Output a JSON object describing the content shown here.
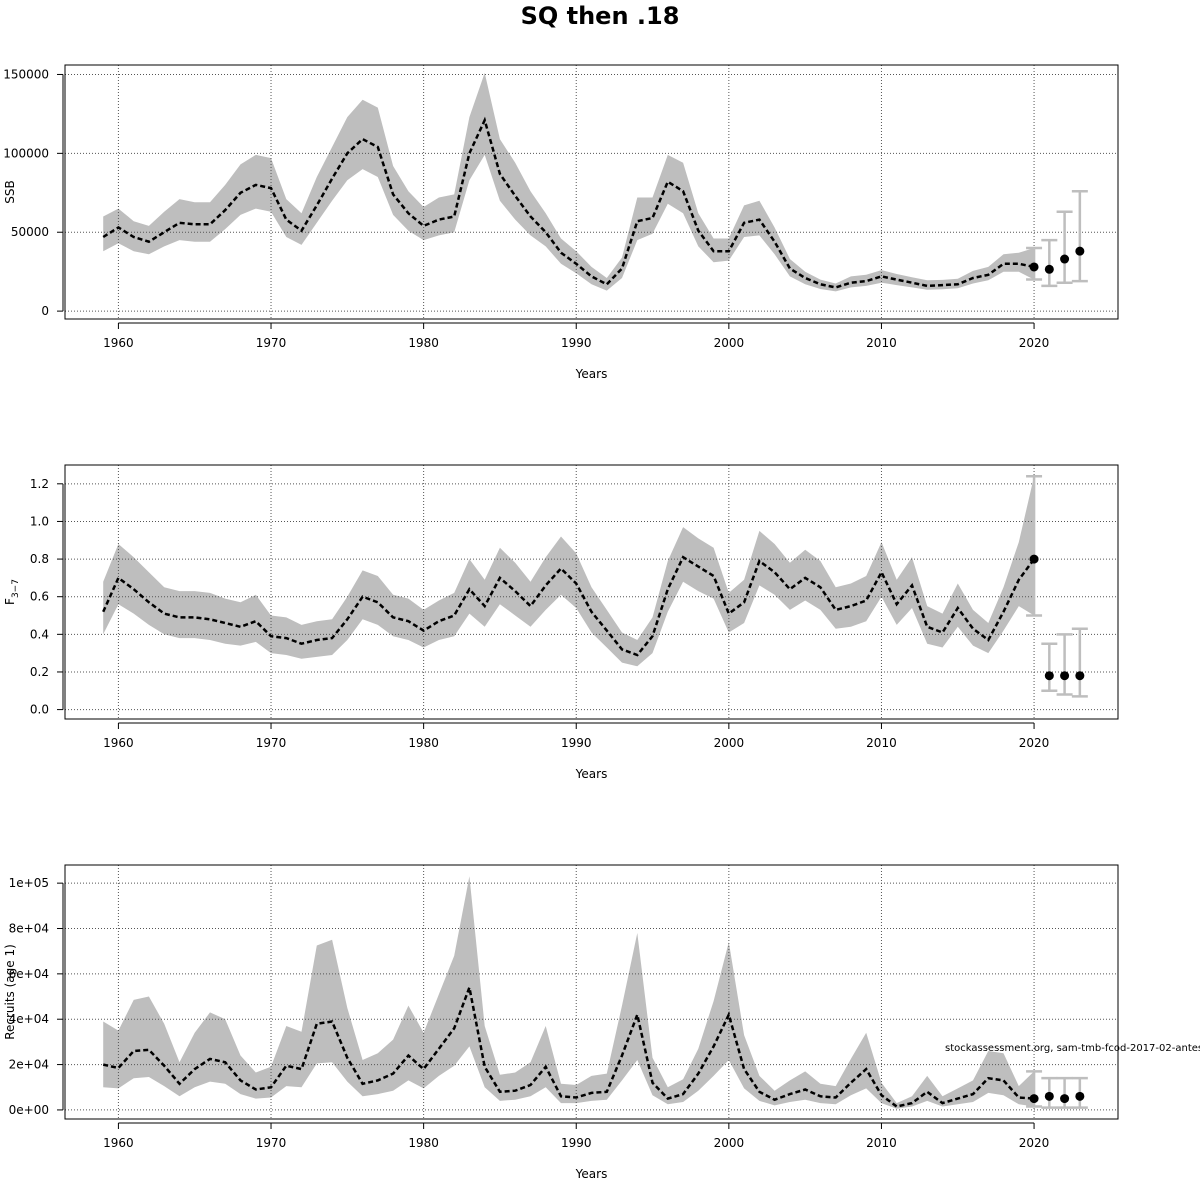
{
  "title": "SQ then .18",
  "watermark": "stockassessment.org, sam-tmb-fcod-2017-02-antes",
  "colors": {
    "band": "#bebebe",
    "line": "#000000",
    "forecast_bar": "#bebebe",
    "grid": "#555555"
  },
  "chart_data": [
    {
      "type": "line",
      "id": "ssb",
      "title": "",
      "xlabel": "Years",
      "ylabel": "SSB",
      "xlim": [
        1956.5,
        2025.5
      ],
      "ylim": [
        -5000,
        156000
      ],
      "xticks": [
        1960,
        1970,
        1980,
        1990,
        2000,
        2010,
        2020
      ],
      "yticks": [
        0,
        50000,
        100000,
        150000
      ],
      "ytick_labels": [
        "0",
        "50000",
        "100000",
        "150000"
      ],
      "years": [
        1959,
        1960,
        1961,
        1962,
        1963,
        1964,
        1965,
        1966,
        1967,
        1968,
        1969,
        1970,
        1971,
        1972,
        1973,
        1974,
        1975,
        1976,
        1977,
        1978,
        1979,
        1980,
        1981,
        1982,
        1983,
        1984,
        1985,
        1986,
        1987,
        1988,
        1989,
        1990,
        1991,
        1992,
        1993,
        1994,
        1995,
        1996,
        1997,
        1998,
        1999,
        2000,
        2001,
        2002,
        2003,
        2004,
        2005,
        2006,
        2007,
        2008,
        2009,
        2010,
        2011,
        2012,
        2013,
        2014,
        2015,
        2016,
        2017,
        2018,
        2019,
        2020
      ],
      "estimate": [
        47000,
        53000,
        47000,
        44000,
        50000,
        56000,
        55000,
        55000,
        64000,
        75000,
        80000,
        78000,
        58000,
        51000,
        67000,
        84000,
        100000,
        109000,
        104000,
        74000,
        62000,
        54000,
        58000,
        60000,
        100000,
        121000,
        87000,
        73000,
        60000,
        50000,
        37000,
        30000,
        22000,
        17000,
        27000,
        57000,
        59000,
        82000,
        76000,
        51000,
        38000,
        38000,
        56000,
        58000,
        44000,
        27000,
        21000,
        17000,
        15000,
        18000,
        19000,
        22000,
        20000,
        18000,
        16000,
        16500,
        17000,
        21000,
        23000,
        30000,
        30000,
        28000
      ],
      "lower": [
        38000,
        43000,
        38000,
        36000,
        41000,
        45000,
        44000,
        44000,
        52000,
        61000,
        65000,
        63000,
        47000,
        42000,
        56000,
        70000,
        83000,
        90000,
        85000,
        61000,
        51000,
        45000,
        48000,
        50000,
        83000,
        99000,
        70000,
        58000,
        48000,
        41000,
        30000,
        24000,
        17000,
        13000,
        21000,
        45000,
        49000,
        68000,
        62000,
        41000,
        31000,
        32000,
        47000,
        48000,
        36000,
        22000,
        17000,
        14000,
        12500,
        15000,
        16000,
        18000,
        16500,
        15000,
        13500,
        13800,
        14500,
        17500,
        19500,
        25000,
        25000,
        20000
      ],
      "upper": [
        60000,
        65000,
        57000,
        54000,
        63000,
        71000,
        69000,
        69000,
        80000,
        93000,
        99000,
        97000,
        71000,
        62000,
        85000,
        104000,
        123000,
        134000,
        129000,
        92000,
        76000,
        66000,
        72000,
        74000,
        123000,
        151000,
        109000,
        94000,
        76000,
        62000,
        46000,
        38000,
        28000,
        21000,
        34000,
        72000,
        72000,
        99000,
        94000,
        62000,
        46000,
        46000,
        67000,
        70000,
        53000,
        33000,
        25000,
        20000,
        17500,
        22000,
        23000,
        26000,
        23500,
        21500,
        19500,
        19800,
        20500,
        25500,
        28000,
        36000,
        37000,
        40000
      ],
      "forecast": {
        "years": [
          2020,
          2021,
          2022,
          2023
        ],
        "estimate": [
          28000,
          26500,
          33000,
          38000
        ],
        "lower": [
          20000,
          16000,
          18000,
          19000
        ],
        "upper": [
          40000,
          45000,
          63000,
          76000
        ]
      }
    },
    {
      "type": "line",
      "id": "fbar",
      "title": "",
      "xlabel": "Years",
      "ylabel": "F",
      "ylabel_subscript": "3−7",
      "xlim": [
        1956.5,
        2025.5
      ],
      "ylim": [
        -0.05,
        1.3
      ],
      "xticks": [
        1960,
        1970,
        1980,
        1990,
        2000,
        2010,
        2020
      ],
      "yticks": [
        0,
        0.2,
        0.4,
        0.6,
        0.8,
        1.0,
        1.2
      ],
      "ytick_labels": [
        "0.0",
        "0.2",
        "0.4",
        "0.6",
        "0.8",
        "1.0",
        "1.2"
      ],
      "years": [
        1959,
        1960,
        1961,
        1962,
        1963,
        1964,
        1965,
        1966,
        1967,
        1968,
        1969,
        1970,
        1971,
        1972,
        1973,
        1974,
        1975,
        1976,
        1977,
        1978,
        1979,
        1980,
        1981,
        1982,
        1983,
        1984,
        1985,
        1986,
        1987,
        1988,
        1989,
        1990,
        1991,
        1992,
        1993,
        1994,
        1995,
        1996,
        1997,
        1998,
        1999,
        2000,
        2001,
        2002,
        2003,
        2004,
        2005,
        2006,
        2007,
        2008,
        2009,
        2010,
        2011,
        2012,
        2013,
        2014,
        2015,
        2016,
        2017,
        2018,
        2019,
        2020
      ],
      "estimate": [
        0.52,
        0.7,
        0.64,
        0.57,
        0.51,
        0.49,
        0.49,
        0.48,
        0.46,
        0.44,
        0.47,
        0.39,
        0.38,
        0.35,
        0.37,
        0.38,
        0.48,
        0.6,
        0.57,
        0.49,
        0.47,
        0.42,
        0.47,
        0.5,
        0.64,
        0.55,
        0.7,
        0.63,
        0.55,
        0.66,
        0.75,
        0.67,
        0.52,
        0.42,
        0.32,
        0.29,
        0.39,
        0.64,
        0.81,
        0.76,
        0.71,
        0.51,
        0.57,
        0.79,
        0.73,
        0.64,
        0.7,
        0.65,
        0.53,
        0.55,
        0.58,
        0.73,
        0.56,
        0.66,
        0.44,
        0.41,
        0.54,
        0.43,
        0.37,
        0.52,
        0.69,
        0.8
      ],
      "lower": [
        0.4,
        0.56,
        0.51,
        0.45,
        0.4,
        0.38,
        0.38,
        0.37,
        0.35,
        0.34,
        0.36,
        0.3,
        0.29,
        0.27,
        0.28,
        0.29,
        0.37,
        0.48,
        0.45,
        0.39,
        0.37,
        0.33,
        0.37,
        0.39,
        0.51,
        0.44,
        0.56,
        0.5,
        0.44,
        0.53,
        0.61,
        0.54,
        0.41,
        0.33,
        0.25,
        0.23,
        0.3,
        0.52,
        0.68,
        0.63,
        0.59,
        0.41,
        0.46,
        0.66,
        0.61,
        0.53,
        0.58,
        0.53,
        0.43,
        0.44,
        0.47,
        0.6,
        0.45,
        0.54,
        0.35,
        0.33,
        0.44,
        0.34,
        0.3,
        0.42,
        0.55,
        0.5
      ],
      "upper": [
        0.68,
        0.88,
        0.81,
        0.73,
        0.65,
        0.63,
        0.63,
        0.62,
        0.59,
        0.57,
        0.61,
        0.5,
        0.49,
        0.45,
        0.47,
        0.48,
        0.6,
        0.74,
        0.71,
        0.61,
        0.59,
        0.53,
        0.58,
        0.62,
        0.8,
        0.69,
        0.86,
        0.78,
        0.68,
        0.81,
        0.92,
        0.83,
        0.65,
        0.53,
        0.41,
        0.37,
        0.49,
        0.79,
        0.97,
        0.91,
        0.86,
        0.62,
        0.69,
        0.95,
        0.88,
        0.78,
        0.85,
        0.79,
        0.65,
        0.67,
        0.71,
        0.89,
        0.69,
        0.81,
        0.55,
        0.51,
        0.67,
        0.53,
        0.46,
        0.65,
        0.89,
        1.24
      ],
      "forecast": {
        "years": [
          2020,
          2021,
          2022,
          2023
        ],
        "estimate": [
          0.8,
          0.18,
          0.18,
          0.18
        ],
        "lower": [
          0.5,
          0.1,
          0.08,
          0.07
        ],
        "upper": [
          1.24,
          0.35,
          0.4,
          0.43
        ]
      }
    },
    {
      "type": "line",
      "id": "recruits",
      "title": "",
      "xlabel": "Years",
      "ylabel": "Recruits (age 1)",
      "xlim": [
        1956.5,
        2025.5
      ],
      "ylim": [
        -4000,
        108000
      ],
      "xticks": [
        1960,
        1970,
        1980,
        1990,
        2000,
        2010,
        2020
      ],
      "yticks": [
        0,
        20000,
        40000,
        60000,
        80000,
        100000
      ],
      "ytick_labels": [
        "0e+00",
        "2e+04",
        "4e+04",
        "6e+04",
        "8e+04",
        "1e+05"
      ],
      "years": [
        1959,
        1960,
        1961,
        1962,
        1963,
        1964,
        1965,
        1966,
        1967,
        1968,
        1969,
        1970,
        1971,
        1972,
        1973,
        1974,
        1975,
        1976,
        1977,
        1978,
        1979,
        1980,
        1981,
        1982,
        1983,
        1984,
        1985,
        1986,
        1987,
        1988,
        1989,
        1990,
        1991,
        1992,
        1993,
        1994,
        1995,
        1996,
        1997,
        1998,
        1999,
        2000,
        2001,
        2002,
        2003,
        2004,
        2005,
        2006,
        2007,
        2008,
        2009,
        2010,
        2011,
        2012,
        2013,
        2014,
        2015,
        2016,
        2017,
        2018,
        2019,
        2020
      ],
      "estimate": [
        20000,
        18500,
        26000,
        26500,
        19500,
        11500,
        18000,
        22500,
        21000,
        13000,
        9000,
        10000,
        19500,
        18000,
        38000,
        39000,
        23000,
        11500,
        13000,
        16000,
        24000,
        18000,
        27000,
        36000,
        54000,
        19000,
        8000,
        8500,
        11000,
        19000,
        6000,
        5500,
        7500,
        8000,
        24000,
        42000,
        12000,
        5000,
        7000,
        16000,
        28000,
        42000,
        18000,
        8000,
        4500,
        7000,
        9000,
        6000,
        5500,
        12000,
        18000,
        6500,
        1500,
        3000,
        8000,
        3000,
        5000,
        7000,
        14000,
        13000,
        5500,
        5000
      ],
      "lower": [
        10000,
        9500,
        14000,
        14500,
        10500,
        6000,
        10000,
        12500,
        11500,
        7000,
        5000,
        5500,
        10500,
        10000,
        20500,
        21000,
        12500,
        6000,
        7000,
        8500,
        13000,
        9500,
        15000,
        19500,
        28000,
        10000,
        4000,
        4500,
        6000,
        10000,
        3000,
        3000,
        4000,
        4500,
        13000,
        22000,
        6500,
        2500,
        3500,
        8500,
        15000,
        22000,
        9500,
        4000,
        2000,
        3500,
        4500,
        3000,
        2500,
        6500,
        9500,
        3000,
        500,
        1500,
        4000,
        1500,
        2500,
        3500,
        7500,
        6500,
        2500,
        1500
      ],
      "upper": [
        39000,
        35000,
        48500,
        50000,
        38000,
        21000,
        34000,
        43000,
        40000,
        24000,
        16500,
        19000,
        37000,
        34500,
        72500,
        75000,
        45000,
        22000,
        25000,
        31000,
        46000,
        34000,
        51000,
        68000,
        103000,
        37000,
        15500,
        16500,
        21000,
        37000,
        11500,
        11000,
        15000,
        16000,
        46000,
        78000,
        23000,
        10000,
        13500,
        27000,
        48000,
        74000,
        33000,
        15000,
        8500,
        13000,
        17000,
        11500,
        10500,
        22500,
        34000,
        12000,
        3000,
        6000,
        15000,
        6000,
        9500,
        13000,
        26000,
        25000,
        10500,
        17000
      ],
      "forecast": {
        "years": [
          2020,
          2021,
          2022,
          2023
        ],
        "estimate": [
          5000,
          6000,
          5000,
          6000
        ],
        "lower": [
          1500,
          1000,
          1000,
          1000
        ],
        "upper": [
          17000,
          14000,
          14000,
          14000
        ]
      }
    }
  ]
}
